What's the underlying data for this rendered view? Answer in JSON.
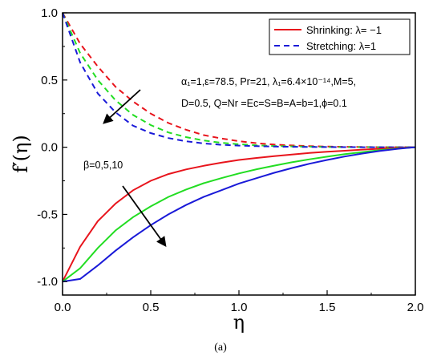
{
  "caption": "(a)",
  "annotations": {
    "params_line1": "α₁=1,ε=78.5, Pr=21, λ₁=6.4×10⁻¹⁴,M=5,",
    "params_line2": "D=0.5, Q=Nr =Ec=S=B=A=b=1,ϕ=0.1",
    "beta": "β=0,5,10"
  },
  "colors": {
    "red": "#e8141c",
    "green": "#22dd22",
    "blue": "#1a1ad8"
  },
  "chart_data": {
    "type": "line",
    "xlabel": "η",
    "ylabel": "f′(η)",
    "xlim": [
      0,
      2
    ],
    "ylim": [
      -1.1,
      1.0
    ],
    "xticks": [
      "0.0",
      "0.5",
      "1.0",
      "1.5",
      "2.0"
    ],
    "yticks": [
      "-1.0",
      "-0.5",
      "0.0",
      "0.5",
      "1.0"
    ],
    "grid": false,
    "legend_position": "top-right",
    "legend": [
      {
        "label": "Shrinking: λ= −1",
        "style": "solid",
        "color": "#e8141c"
      },
      {
        "label": "Stretching: λ=1",
        "style": "dashed",
        "color": "#1a1ad8"
      }
    ],
    "x": [
      0.0,
      0.1,
      0.2,
      0.3,
      0.4,
      0.5,
      0.6,
      0.7,
      0.8,
      0.9,
      1.0,
      1.1,
      1.2,
      1.3,
      1.4,
      1.5,
      1.6,
      1.7,
      1.8,
      1.9,
      2.0
    ],
    "series": [
      {
        "name": "Stretching: λ=1",
        "color": "#e8141c",
        "dashed": true,
        "values": [
          1.0,
          0.77,
          0.6,
          0.45,
          0.34,
          0.25,
          0.18,
          0.13,
          0.09,
          0.065,
          0.045,
          0.03,
          0.02,
          0.013,
          0.008,
          0.005,
          0.003,
          0.002,
          0.001,
          0.0005,
          0.0
        ]
      },
      {
        "color": "#22dd22",
        "dashed": true,
        "values": [
          1.0,
          0.7,
          0.5,
          0.35,
          0.24,
          0.165,
          0.11,
          0.075,
          0.05,
          0.033,
          0.022,
          0.014,
          0.009,
          0.006,
          0.004,
          0.002,
          0.001,
          0.0007,
          0.0004,
          0.0002,
          0.0
        ]
      },
      {
        "color": "#1a1ad8",
        "dashed": true,
        "values": [
          1.0,
          0.63,
          0.4,
          0.26,
          0.16,
          0.105,
          0.068,
          0.044,
          0.028,
          0.018,
          0.012,
          0.008,
          0.005,
          0.003,
          0.002,
          0.0012,
          0.0007,
          0.0004,
          0.0002,
          0.0001,
          0.0
        ]
      },
      {
        "name": "Shrinking: λ= −1",
        "color": "#e8141c",
        "dashed": false,
        "values": [
          -1.0,
          -0.74,
          -0.55,
          -0.42,
          -0.32,
          -0.25,
          -0.2,
          -0.165,
          -0.138,
          -0.115,
          -0.095,
          -0.08,
          -0.066,
          -0.054,
          -0.043,
          -0.034,
          -0.026,
          -0.018,
          -0.011,
          -0.005,
          0.0
        ]
      },
      {
        "color": "#22dd22",
        "dashed": false,
        "values": [
          -1.0,
          -0.9,
          -0.75,
          -0.62,
          -0.52,
          -0.44,
          -0.37,
          -0.315,
          -0.268,
          -0.23,
          -0.195,
          -0.164,
          -0.137,
          -0.112,
          -0.09,
          -0.07,
          -0.052,
          -0.036,
          -0.022,
          -0.01,
          0.0
        ]
      },
      {
        "color": "#1a1ad8",
        "dashed": false,
        "values": [
          -1.0,
          -0.98,
          -0.88,
          -0.77,
          -0.67,
          -0.58,
          -0.5,
          -0.43,
          -0.37,
          -0.32,
          -0.27,
          -0.23,
          -0.19,
          -0.155,
          -0.123,
          -0.095,
          -0.069,
          -0.047,
          -0.028,
          -0.012,
          0.0
        ]
      }
    ]
  }
}
